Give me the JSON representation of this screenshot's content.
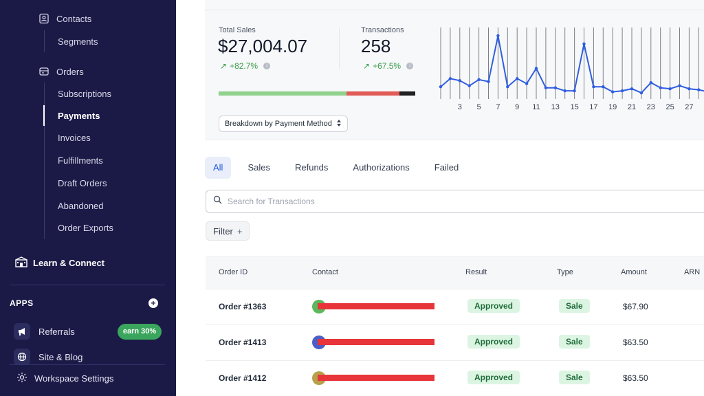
{
  "sidebar": {
    "contacts": "Contacts",
    "segments": "Segments",
    "orders": "Orders",
    "subscriptions": "Subscriptions",
    "payments": "Payments",
    "invoices": "Invoices",
    "fulfillments": "Fulfillments",
    "draft_orders": "Draft Orders",
    "abandoned": "Abandoned",
    "order_exports": "Order Exports",
    "learn_connect": "Learn & Connect",
    "apps_label": "APPS",
    "referrals": "Referrals",
    "earn_badge": "earn 30%",
    "site_blog": "Site & Blog",
    "workspace_settings": "Workspace Settings"
  },
  "stats": {
    "total_sales_label": "Total Sales",
    "total_sales_value": "$27,004.07",
    "total_sales_change": "+82.7%",
    "transactions_label": "Transactions",
    "transactions_value": "258",
    "transactions_change": "+67.5%",
    "progress": {
      "green": 0.65,
      "red": 0.27,
      "dark": 0.08
    },
    "breakdown_label": "Breakdown by Payment Method"
  },
  "colors": {
    "line": "#2f5de0",
    "success": "#3a9d4a",
    "sidebar_bg": "#1b1a47"
  },
  "chart_data": {
    "type": "line",
    "x": [
      1,
      2,
      3,
      4,
      5,
      6,
      7,
      8,
      9,
      10,
      11,
      12,
      13,
      14,
      15,
      16,
      17,
      18,
      19,
      20,
      21,
      22,
      23,
      24,
      25,
      26,
      27,
      28,
      29,
      30
    ],
    "tick_labels": [
      "3",
      "5",
      "7",
      "9",
      "11",
      "13",
      "15",
      "17",
      "19",
      "21",
      "23",
      "25",
      "27"
    ],
    "series": [
      {
        "values": [
          2,
          10,
          8,
          3,
          9,
          7,
          52,
          2,
          10,
          5,
          20,
          1,
          1,
          -2,
          -2,
          44,
          2,
          2,
          -3,
          -2,
          0,
          -4,
          6,
          1,
          0,
          3,
          0,
          -1,
          -3,
          1
        ]
      }
    ],
    "grid": true
  },
  "tabs": [
    {
      "label": "All"
    },
    {
      "label": "Sales"
    },
    {
      "label": "Refunds"
    },
    {
      "label": "Authorizations"
    },
    {
      "label": "Failed"
    }
  ],
  "search": {
    "placeholder": "Search for Transactions"
  },
  "filter": {
    "label": "Filter",
    "plus": "+"
  },
  "table": {
    "headers": {
      "order_id": "Order ID",
      "contact": "Contact",
      "result": "Result",
      "type": "Type",
      "amount": "Amount",
      "arn": "ARN"
    },
    "rows": [
      {
        "order": "Order #1363",
        "result": "Approved",
        "type": "Sale",
        "amount": "$67.90",
        "avatar_color": "#5cb85c"
      },
      {
        "order": "Order #1413",
        "result": "Approved",
        "type": "Sale",
        "amount": "$63.50",
        "avatar_color": "#4c5fc7"
      },
      {
        "order": "Order #1412",
        "result": "Approved",
        "type": "Sale",
        "amount": "$63.50",
        "avatar_color": "#b7a04a"
      }
    ]
  }
}
